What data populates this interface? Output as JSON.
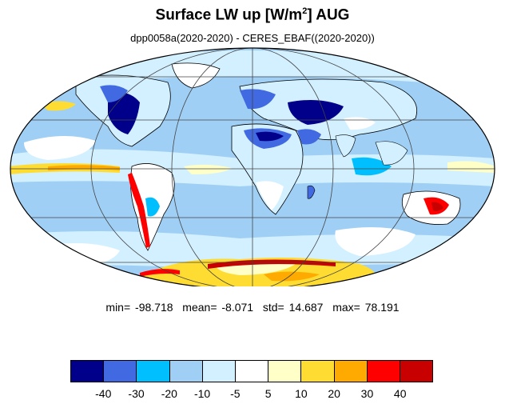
{
  "title": {
    "main": "Surface LW up [W/m",
    "sup": "2",
    "tail": "]  AUG"
  },
  "subtitle": "dpp0058a(2020-2020) - CERES_EBAF((2020-2020))",
  "stats": {
    "min_label": "min=",
    "min": "-98.718",
    "mean_label": "mean=",
    "mean": "-8.071",
    "std_label": "std=",
    "std": "14.687",
    "max_label": "max=",
    "max": "78.191"
  },
  "colorbar": {
    "colors": [
      "#00008b",
      "#4169e1",
      "#00bfff",
      "#a0cff5",
      "#d2f0ff",
      "#ffffff",
      "#ffffc8",
      "#ffdc32",
      "#ffaa00",
      "#ff0000",
      "#c80000"
    ],
    "labels": [
      "-40",
      "-30",
      "-20",
      "-10",
      "-5",
      "5",
      "10",
      "20",
      "30",
      "40"
    ]
  },
  "colors": {
    "ocean_base": "#a0cff5",
    "land_base": "#d2f0ff",
    "coastline": "#000000",
    "gridline": "#444444"
  }
}
